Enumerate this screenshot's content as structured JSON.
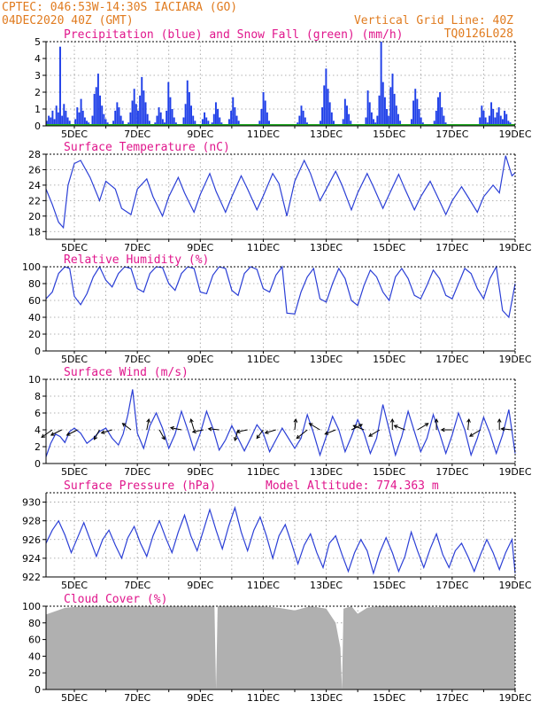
{
  "header": {
    "line1": "CPTEC:   046:53W-14:30S   IACIARA (GO)",
    "line2": "04DEC2020 40Z (GMT)",
    "right1": "Vertical Grid Line: 40Z",
    "right2": "TQ0126L028"
  },
  "colors": {
    "header": "#e07b1f",
    "title": "#e0168c",
    "line": "#2b3fd6",
    "bar": "#1f3fe8",
    "cloud": "#b0b0b0",
    "snow": "#22aa22"
  },
  "x_labels": [
    "5DEC",
    "7DEC",
    "9DEC",
    "11DEC",
    "13DEC",
    "15DEC",
    "17DEC",
    "19DEC"
  ],
  "chart_data": [
    {
      "type": "bar",
      "title": "Precipitation (blue) and Snow Fall (green) (mm/h)",
      "ylim": [
        0,
        5
      ],
      "yticks": [
        0,
        1,
        2,
        3,
        4,
        5
      ],
      "x_range": [
        4.1,
        19.0
      ],
      "series": [
        {
          "name": "Precipitation",
          "values": [
            0.3,
            0.6,
            0.5,
            0.9,
            0.4,
            1.2,
            0.8,
            4.7,
            0.6,
            1.3,
            0.9,
            0.5,
            0.3,
            0.1,
            0.0,
            0.4,
            1.1,
            0.8,
            1.6,
            0.9,
            0.5,
            0.3,
            0.2,
            0.1,
            0.6,
            1.9,
            2.3,
            3.1,
            1.8,
            1.2,
            0.7,
            0.4,
            0.2,
            0.1,
            0.0,
            0.3,
            0.9,
            1.4,
            1.1,
            0.6,
            0.3,
            0.1,
            0.0,
            0.2,
            0.8,
            1.5,
            2.2,
            1.3,
            0.9,
            1.8,
            2.9,
            2.1,
            1.4,
            0.7,
            0.3,
            0.1,
            0.0,
            0.2,
            0.6,
            1.1,
            0.8,
            0.4,
            0.2,
            0.9,
            2.6,
            1.7,
            1.0,
            0.5,
            0.2,
            0.1,
            0.0,
            0.1,
            0.5,
            1.3,
            2.7,
            2.0,
            1.2,
            0.6,
            0.3,
            0.1,
            0.0,
            0.1,
            0.4,
            0.8,
            0.5,
            0.3,
            0.0,
            0.2,
            0.7,
            1.4,
            1.0,
            0.5,
            0.2,
            0.0,
            0.0,
            0.0,
            0.4,
            0.9,
            1.7,
            1.1,
            0.6,
            0.3,
            0.0,
            0.0,
            0.0,
            0.0,
            0.0,
            0.0,
            0.0,
            0.0,
            0.0,
            0.0,
            0.3,
            1.0,
            2.0,
            1.5,
            0.8,
            0.3,
            0.1,
            0.0,
            0.0,
            0.0,
            0.0,
            0.0,
            0.0,
            0.0,
            0.0,
            0.0,
            0.0,
            0.0,
            0.0,
            0.0,
            0.2,
            0.6,
            1.2,
            0.9,
            0.5,
            0.2,
            0.0,
            0.0,
            0.0,
            0.0,
            0.0,
            0.0,
            0.3,
            1.1,
            2.4,
            3.4,
            2.2,
            1.4,
            0.8,
            0.3,
            0.1,
            0.0,
            0.0,
            0.0,
            0.4,
            1.6,
            1.2,
            0.7,
            0.3,
            0.1,
            0.0,
            0.0,
            0.0,
            0.0,
            0.0,
            0.0,
            0.5,
            2.1,
            1.4,
            0.8,
            0.4,
            0.2,
            0.6,
            1.8,
            5.0,
            2.6,
            1.7,
            1.0,
            0.6,
            2.3,
            3.1,
            1.9,
            1.2,
            0.7,
            0.3,
            0.1,
            0.0,
            0.0,
            0.0,
            0.0,
            0.4,
            1.5,
            2.2,
            1.6,
            1.0,
            0.5,
            0.2,
            0.0,
            0.0,
            0.0,
            0.0,
            0.0,
            0.3,
            0.9,
            1.7,
            2.0,
            1.1,
            0.6,
            0.2,
            0.0,
            0.0,
            0.0,
            0.0,
            0.0,
            0.0,
            0.0,
            0.0,
            0.0,
            0.0,
            0.0,
            0.0,
            0.0,
            0.0,
            0.0,
            0.0,
            0.0,
            0.5,
            1.2,
            0.9,
            0.5,
            0.2,
            0.6,
            1.4,
            1.0,
            0.5,
            0.8,
            1.1,
            0.6,
            0.4,
            0.9,
            0.7,
            0.3,
            0.2,
            0.0,
            0.0
          ]
        },
        {
          "name": "Snow Fall",
          "values": [
            0
          ]
        }
      ]
    },
    {
      "type": "line",
      "title": "Surface Temperature (nC)",
      "ylim": [
        17,
        28
      ],
      "yticks": [
        18,
        20,
        22,
        24,
        26,
        28
      ],
      "x_range": [
        4.1,
        19.0
      ],
      "x": [
        4.1,
        4.3,
        4.5,
        4.65,
        4.8,
        5.0,
        5.2,
        5.5,
        5.8,
        6.0,
        6.3,
        6.5,
        6.8,
        7.0,
        7.3,
        7.5,
        7.8,
        8.0,
        8.3,
        8.5,
        8.8,
        9.0,
        9.3,
        9.5,
        9.8,
        10.0,
        10.3,
        10.5,
        10.8,
        11.0,
        11.3,
        11.5,
        11.75,
        12.0,
        12.3,
        12.5,
        12.8,
        13.0,
        13.3,
        13.5,
        13.8,
        14.0,
        14.3,
        14.5,
        14.8,
        15.0,
        15.3,
        15.5,
        15.8,
        16.0,
        16.3,
        16.5,
        16.8,
        17.0,
        17.3,
        17.5,
        17.8,
        18.0,
        18.3,
        18.5,
        18.7,
        18.9,
        19.0
      ],
      "y": [
        23.5,
        21.5,
        19.2,
        18.5,
        24.0,
        26.8,
        27.2,
        25.0,
        22.0,
        24.5,
        23.5,
        21.0,
        20.2,
        23.5,
        24.8,
        22.5,
        20.0,
        22.5,
        25.0,
        23.0,
        20.5,
        22.8,
        25.5,
        23.2,
        20.5,
        22.5,
        25.2,
        23.5,
        20.8,
        22.6,
        25.5,
        24.2,
        20.0,
        24.5,
        27.2,
        25.5,
        22.0,
        23.5,
        25.8,
        24.0,
        20.8,
        23.0,
        25.5,
        23.8,
        21.0,
        22.8,
        25.4,
        23.5,
        20.8,
        22.5,
        24.5,
        22.8,
        20.2,
        22.0,
        23.8,
        22.5,
        20.5,
        22.5,
        24.0,
        23.0,
        27.8,
        25.2,
        25.6
      ]
    },
    {
      "type": "line",
      "title": "Relative Humidity (%)",
      "ylim": [
        0,
        100
      ],
      "yticks": [
        0,
        20,
        40,
        60,
        80,
        100
      ],
      "x_range": [
        4.1,
        19.0
      ],
      "x": [
        4.1,
        4.3,
        4.5,
        4.7,
        4.85,
        5.0,
        5.2,
        5.4,
        5.6,
        5.8,
        6.0,
        6.2,
        6.4,
        6.6,
        6.8,
        7.0,
        7.2,
        7.4,
        7.6,
        7.8,
        8.0,
        8.2,
        8.4,
        8.6,
        8.8,
        9.0,
        9.2,
        9.4,
        9.6,
        9.8,
        10.0,
        10.2,
        10.4,
        10.6,
        10.8,
        11.0,
        11.2,
        11.4,
        11.6,
        11.75,
        12.0,
        12.2,
        12.4,
        12.6,
        12.8,
        13.0,
        13.2,
        13.4,
        13.6,
        13.8,
        14.0,
        14.2,
        14.4,
        14.6,
        14.8,
        15.0,
        15.2,
        15.4,
        15.6,
        15.8,
        16.0,
        16.2,
        16.4,
        16.6,
        16.8,
        17.0,
        17.2,
        17.4,
        17.6,
        17.8,
        18.0,
        18.2,
        18.4,
        18.6,
        18.8,
        19.0
      ],
      "y": [
        62,
        70,
        92,
        100,
        98,
        65,
        55,
        68,
        88,
        100,
        84,
        76,
        92,
        100,
        98,
        74,
        70,
        92,
        100,
        99,
        80,
        72,
        92,
        100,
        98,
        70,
        68,
        90,
        100,
        98,
        72,
        66,
        92,
        100,
        97,
        74,
        70,
        90,
        100,
        45,
        44,
        70,
        88,
        98,
        62,
        58,
        80,
        98,
        86,
        60,
        54,
        78,
        96,
        88,
        70,
        60,
        88,
        98,
        86,
        66,
        62,
        78,
        96,
        86,
        66,
        62,
        80,
        98,
        92,
        74,
        62,
        86,
        100,
        48,
        40,
        80
      ]
    },
    {
      "type": "line",
      "title": "Surface Wind (m/s)",
      "ylim": [
        0,
        10
      ],
      "yticks": [
        0,
        2,
        4,
        6,
        8,
        10
      ],
      "x_range": [
        4.1,
        19.0
      ],
      "x": [
        4.1,
        4.25,
        4.4,
        4.55,
        4.7,
        4.85,
        5.0,
        5.2,
        5.4,
        5.6,
        5.8,
        6.0,
        6.2,
        6.4,
        6.55,
        6.7,
        6.85,
        7.0,
        7.2,
        7.4,
        7.6,
        7.8,
        8.0,
        8.2,
        8.4,
        8.6,
        8.8,
        9.0,
        9.2,
        9.4,
        9.6,
        9.8,
        10.0,
        10.2,
        10.4,
        10.6,
        10.8,
        11.0,
        11.2,
        11.4,
        11.6,
        11.8,
        12.0,
        12.2,
        12.4,
        12.6,
        12.8,
        13.0,
        13.2,
        13.4,
        13.6,
        13.8,
        14.0,
        14.2,
        14.4,
        14.6,
        14.8,
        15.0,
        15.2,
        15.4,
        15.6,
        15.8,
        16.0,
        16.2,
        16.4,
        16.6,
        16.8,
        17.0,
        17.2,
        17.4,
        17.6,
        17.8,
        18.0,
        18.2,
        18.4,
        18.6,
        18.8,
        19.0
      ],
      "y": [
        0.8,
        2.4,
        3.5,
        3.2,
        2.5,
        3.8,
        4.2,
        3.6,
        2.4,
        3.0,
        3.8,
        4.2,
        3.0,
        2.2,
        3.5,
        5.8,
        8.8,
        3.6,
        1.8,
        4.5,
        6.0,
        4.2,
        1.8,
        3.5,
        6.2,
        4.0,
        1.6,
        3.6,
        6.2,
        4.2,
        1.6,
        2.8,
        4.5,
        3.0,
        1.5,
        3.0,
        4.6,
        3.6,
        1.4,
        2.8,
        4.2,
        3.0,
        1.8,
        3.0,
        5.8,
        3.6,
        1.0,
        3.2,
        5.6,
        4.0,
        1.4,
        3.2,
        5.2,
        3.6,
        1.2,
        3.0,
        7.0,
        4.0,
        1.0,
        3.2,
        6.2,
        3.8,
        1.4,
        3.0,
        5.8,
        3.6,
        1.2,
        3.4,
        6.0,
        4.0,
        1.0,
        3.0,
        5.5,
        3.6,
        1.2,
        3.4,
        6.4,
        1.2
      ],
      "vectors": [
        {
          "x": 4.3,
          "u": -1,
          "v": -0.7
        },
        {
          "x": 4.6,
          "u": -1,
          "v": -0.5
        },
        {
          "x": 5.1,
          "u": -1,
          "v": -0.5
        },
        {
          "x": 5.8,
          "u": -0.5,
          "v": -0.9
        },
        {
          "x": 6.2,
          "u": -1,
          "v": -0.3
        },
        {
          "x": 6.8,
          "u": -0.8,
          "v": 0.6
        },
        {
          "x": 7.3,
          "u": 0.2,
          "v": 1
        },
        {
          "x": 7.7,
          "u": 0.5,
          "v": -0.9
        },
        {
          "x": 8.4,
          "u": -1,
          "v": 0.2
        },
        {
          "x": 8.8,
          "u": -0.3,
          "v": 1
        },
        {
          "x": 9.1,
          "u": -1,
          "v": -0.2
        },
        {
          "x": 9.6,
          "u": -1,
          "v": 0.1
        },
        {
          "x": 10.2,
          "u": -0.3,
          "v": -1
        },
        {
          "x": 10.5,
          "u": -1,
          "v": -0.2
        },
        {
          "x": 11.0,
          "u": -0.6,
          "v": -0.8
        },
        {
          "x": 11.4,
          "u": -1,
          "v": -0.3
        },
        {
          "x": 12.0,
          "u": 0.1,
          "v": 1
        },
        {
          "x": 12.4,
          "u": -1,
          "v": -0.8
        },
        {
          "x": 12.8,
          "u": -1,
          "v": 0.6
        },
        {
          "x": 13.3,
          "u": -1,
          "v": -0.4
        },
        {
          "x": 13.8,
          "u": 1,
          "v": 0.5
        },
        {
          "x": 14.2,
          "u": -1,
          "v": 0.4
        },
        {
          "x": 14.7,
          "u": -1,
          "v": -0.6
        },
        {
          "x": 15.1,
          "u": 0,
          "v": 1
        },
        {
          "x": 15.5,
          "u": -1,
          "v": 0.4
        },
        {
          "x": 15.9,
          "u": 1,
          "v": 0.6
        },
        {
          "x": 16.5,
          "u": 0,
          "v": 1
        },
        {
          "x": 17.0,
          "u": -1,
          "v": 0
        },
        {
          "x": 17.5,
          "u": 0.1,
          "v": 1
        },
        {
          "x": 17.9,
          "u": -1,
          "v": -0.6
        },
        {
          "x": 18.5,
          "u": 0,
          "v": 1
        },
        {
          "x": 18.9,
          "u": -1,
          "v": 0.1
        }
      ]
    },
    {
      "type": "line",
      "title": "Surface Pressure (hPa)",
      "subtitle": "Model Altitude: 774.363 m",
      "ylim": [
        922,
        931
      ],
      "yticks": [
        922,
        924,
        926,
        928,
        930
      ],
      "x_range": [
        4.1,
        19.0
      ],
      "x": [
        4.1,
        4.3,
        4.5,
        4.7,
        4.9,
        5.1,
        5.3,
        5.5,
        5.7,
        5.9,
        6.1,
        6.3,
        6.5,
        6.7,
        6.9,
        7.1,
        7.3,
        7.5,
        7.7,
        7.9,
        8.1,
        8.3,
        8.5,
        8.7,
        8.9,
        9.1,
        9.3,
        9.5,
        9.7,
        9.9,
        10.1,
        10.3,
        10.5,
        10.7,
        10.9,
        11.1,
        11.3,
        11.5,
        11.7,
        11.9,
        12.1,
        12.3,
        12.5,
        12.7,
        12.9,
        13.1,
        13.3,
        13.5,
        13.7,
        13.9,
        14.1,
        14.3,
        14.5,
        14.7,
        14.9,
        15.1,
        15.3,
        15.5,
        15.7,
        15.9,
        16.1,
        16.3,
        16.5,
        16.7,
        16.9,
        17.1,
        17.3,
        17.5,
        17.7,
        17.9,
        18.1,
        18.3,
        18.5,
        18.7,
        18.9,
        19.0
      ],
      "y": [
        925.6,
        927.0,
        928.0,
        926.5,
        924.6,
        926.2,
        927.8,
        926.0,
        924.2,
        926.0,
        927.0,
        925.4,
        924.0,
        926.2,
        927.4,
        925.6,
        924.2,
        926.4,
        928.0,
        926.2,
        924.6,
        926.8,
        928.6,
        926.4,
        924.8,
        927.0,
        929.2,
        927.0,
        925.0,
        927.4,
        929.4,
        926.8,
        924.8,
        927.0,
        928.4,
        926.4,
        924.0,
        926.4,
        927.6,
        925.6,
        923.4,
        925.4,
        926.6,
        924.6,
        923.0,
        925.6,
        926.4,
        924.4,
        922.6,
        924.6,
        926.0,
        924.8,
        922.4,
        924.6,
        926.2,
        924.6,
        922.6,
        924.2,
        926.8,
        924.8,
        923.0,
        925.0,
        926.6,
        924.4,
        923.0,
        924.8,
        925.6,
        924.2,
        922.6,
        924.4,
        926.0,
        924.6,
        922.8,
        924.6,
        926.0,
        922.4
      ]
    },
    {
      "type": "area",
      "title": "Cloud Cover (%)",
      "ylim": [
        0,
        100
      ],
      "yticks": [
        0,
        20,
        40,
        60,
        80,
        100
      ],
      "x_range": [
        4.1,
        19.0
      ],
      "x": [
        4.1,
        4.4,
        4.7,
        5.0,
        5.5,
        6.0,
        6.5,
        7.0,
        7.5,
        8.0,
        8.5,
        9.0,
        9.3,
        9.45,
        9.5,
        9.55,
        9.8,
        10.0,
        10.5,
        11.0,
        11.5,
        12.0,
        12.5,
        13.0,
        13.3,
        13.45,
        13.5,
        13.55,
        13.8,
        14.0,
        14.3,
        14.6,
        15.0,
        15.5,
        16.0,
        16.5,
        17.0,
        17.5,
        18.0,
        18.5,
        19.0
      ],
      "y": [
        90,
        94,
        98,
        99,
        100,
        100,
        100,
        100,
        100,
        100,
        100,
        100,
        100,
        100,
        0,
        100,
        100,
        100,
        100,
        100,
        98,
        95,
        100,
        97,
        80,
        50,
        0,
        97,
        100,
        91,
        98,
        100,
        100,
        100,
        100,
        99,
        100,
        100,
        100,
        100,
        100
      ]
    }
  ]
}
